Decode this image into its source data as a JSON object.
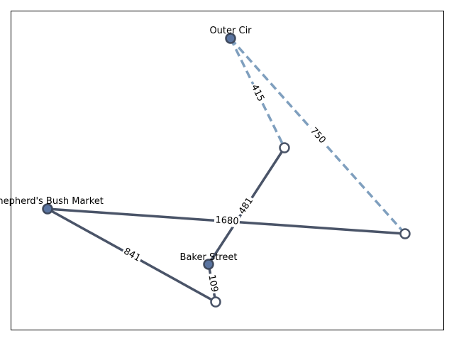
{
  "nodes": {
    "outer_cir": {
      "label": "Outer Cir",
      "kind": "main"
    },
    "shepherds_bush": {
      "label": "Shepherd's Bush Market",
      "kind": "main"
    },
    "baker_street": {
      "label": "Baker Street",
      "kind": "main"
    },
    "junction_a": {
      "label": "",
      "kind": "minor"
    },
    "junction_b": {
      "label": "",
      "kind": "minor"
    },
    "junction_c": {
      "label": "",
      "kind": "minor"
    }
  },
  "edges": {
    "outer_to_a": {
      "label": "415",
      "style": "dashed"
    },
    "outer_to_b": {
      "label": "750",
      "style": "dashed"
    },
    "a_to_baker": {
      "label": "481",
      "style": "solid"
    },
    "shepherds_to_b": {
      "label": "1680",
      "style": "solid"
    },
    "shepherds_to_c": {
      "label": "841",
      "style": "solid"
    },
    "baker_to_c": {
      "label": "109",
      "style": "solid"
    }
  },
  "colors": {
    "solid_edge": "#4a5468",
    "dashed_edge": "#7f9fbe",
    "main_node_fill": "#5a74a0",
    "minor_node_fill": "#ffffff"
  }
}
